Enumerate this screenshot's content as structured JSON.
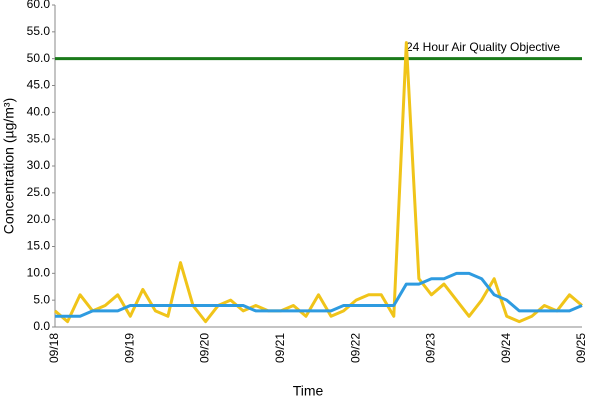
{
  "chart_data": {
    "type": "line",
    "xlabel": "Time",
    "ylabel": "Concentration (µg/m³)",
    "xticks": [
      "09/18",
      "09/19",
      "09/20",
      "09/21",
      "09/22",
      "09/23",
      "09/24",
      "09/25"
    ],
    "ylim": [
      0,
      60
    ],
    "yticks": [
      {
        "value": 0,
        "label": "0.0"
      },
      {
        "value": 5,
        "label": "5.0"
      },
      {
        "value": 10,
        "label": "10.0"
      },
      {
        "value": 15,
        "label": "15.0"
      },
      {
        "value": 20,
        "label": "20.0"
      },
      {
        "value": 25,
        "label": "25.0"
      },
      {
        "value": 30,
        "label": "30.0"
      },
      {
        "value": 35,
        "label": "35.0"
      },
      {
        "value": 40,
        "label": "40.0"
      },
      {
        "value": 45,
        "label": "45.0"
      },
      {
        "value": 50,
        "label": "50.0"
      },
      {
        "value": 55,
        "label": "55.0"
      },
      {
        "value": 60,
        "label": "60.0"
      }
    ],
    "objective": {
      "label": "24 Hour Air Quality Objective",
      "value": 50,
      "color": "#1a7a1a"
    },
    "series": [
      {
        "color": "#f0c419",
        "values": [
          3,
          1,
          6,
          3,
          4,
          6,
          2,
          7,
          3,
          2,
          12,
          4,
          1,
          4,
          5,
          3,
          4,
          3,
          3,
          4,
          2,
          6,
          2,
          3,
          5,
          6,
          6,
          2,
          53,
          9,
          6,
          8,
          5,
          2,
          5,
          9,
          2,
          1,
          2,
          4,
          3,
          6,
          4
        ]
      },
      {
        "color": "#2e9be0",
        "values": [
          2,
          2,
          2,
          3,
          3,
          3,
          4,
          4,
          4,
          4,
          4,
          4,
          4,
          4,
          4,
          4,
          3,
          3,
          3,
          3,
          3,
          3,
          3,
          4,
          4,
          4,
          4,
          4,
          8,
          8,
          9,
          9,
          10,
          10,
          9,
          6,
          5,
          3,
          3,
          3,
          3,
          3,
          4
        ]
      }
    ]
  }
}
